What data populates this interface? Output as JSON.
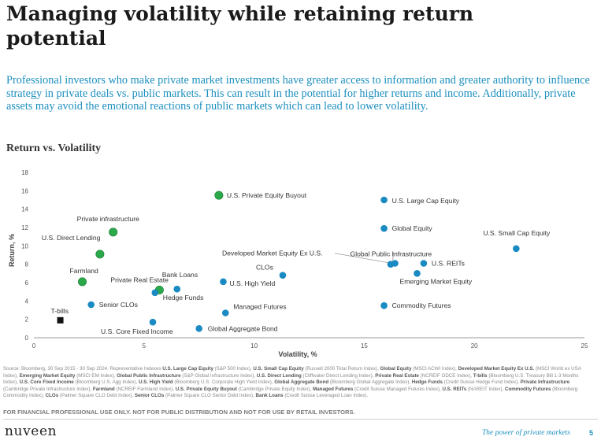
{
  "page": {
    "title": "Managing volatility while retaining return potential",
    "intro": "Professional investors who make private market investments have greater access to information and greater authority to influence strategy in private deals vs. public markets. This can result in the potential for higher returns and income. Additionally, private assets may avoid the emotional reactions of public markets which can lead to lower volatility.",
    "chart_title": "Return vs. Volatility",
    "disclaimer": "FOR FINANCIAL PROFESSIONAL USE ONLY. NOT FOR PUBLIC DISTRIBUTION AND NOT FOR USE BY RETAIL INVESTORS.",
    "logo": "nuveen",
    "tagline": "The power of private markets",
    "page_number": "5"
  },
  "source_note": [
    {
      "t": "Source: Bloomberg, 30 Sep 2015 - 30 Sep 2024. Representative Indexes "
    },
    {
      "t": "U.S. Large Cap Equity",
      "b": true
    },
    {
      "t": " (S&P 500 Index), "
    },
    {
      "t": "U.S. Small Cap Equity",
      "b": true
    },
    {
      "t": " (Russell 2000 Total Return Index), "
    },
    {
      "t": "Global Equity",
      "b": true
    },
    {
      "t": " (MSCI ACWI Index), "
    },
    {
      "t": "Developed Market Equity Ex U.S.",
      "b": true
    },
    {
      "t": " (MSCI World ex USA Index), "
    },
    {
      "t": "Emerging Market Equity",
      "b": true
    },
    {
      "t": " (MSCI EM Index), "
    },
    {
      "t": "Global Public Infrastructure",
      "b": true
    },
    {
      "t": " (S&P Global Infrastructure Index), "
    },
    {
      "t": "U.S. Direct Lending",
      "b": true
    },
    {
      "t": " (Cliffwater Direct Lending Index), "
    },
    {
      "t": "Private Real Estate",
      "b": true
    },
    {
      "t": " (NCREIF ODCE Index), "
    },
    {
      "t": "T-bills",
      "b": true
    },
    {
      "t": " (Bloomberg U.S. Treasury Bill 1-3 Months Index), "
    },
    {
      "t": "U.S. Core Fixed Income",
      "b": true
    },
    {
      "t": " (Bloomberg U.S. Agg Index), "
    },
    {
      "t": "U.S. High Yield",
      "b": true
    },
    {
      "t": " (Bloomberg U.S. Corporate High Yield Index), "
    },
    {
      "t": "Global Aggregate Bond",
      "b": true
    },
    {
      "t": " (Bloomberg Global Aggregate Index), "
    },
    {
      "t": "Hedge Funds",
      "b": true
    },
    {
      "t": " (Credit Suisse Hedge Fund Index), "
    },
    {
      "t": "Private Infrastructure",
      "b": true
    },
    {
      "t": " (Cambridge Private Infrastructure Index), "
    },
    {
      "t": "Farmland",
      "b": true
    },
    {
      "t": " (NCREIF Farmland Index), "
    },
    {
      "t": "U.S. Private Equity Buyout",
      "b": true
    },
    {
      "t": " (Cambridge Private Equity Index), "
    },
    {
      "t": "Managed Futures",
      "b": true
    },
    {
      "t": " (Credit Suisse Managed Futures Index), "
    },
    {
      "t": "U.S. REITs",
      "b": true
    },
    {
      "t": " (NAREIT Index), "
    },
    {
      "t": "Commodity Futures",
      "b": true
    },
    {
      "t": " (Bloomberg Commodity Index), "
    },
    {
      "t": "CLOs",
      "b": true
    },
    {
      "t": " (Palmer Square CLO Debt Index), "
    },
    {
      "t": "Senior CLOs",
      "b": true
    },
    {
      "t": " (Palmer Square CLO Senior Debt Index), "
    },
    {
      "t": "Bank Loans",
      "b": true
    },
    {
      "t": " (Credit Suisse Leveraged Loan Index)."
    }
  ],
  "colors": {
    "public": "#1a8ac2",
    "private": "#2aa84a",
    "tbill": "#111111"
  },
  "chart_data": {
    "type": "scatter",
    "xlabel": "Volatility, %",
    "ylabel": "Return, %",
    "xlim": [
      0,
      25
    ],
    "ylim": [
      0,
      18
    ],
    "xticks": [
      "0",
      "5",
      "10",
      "15",
      "20",
      "25"
    ],
    "yticks": [
      "0",
      "2",
      "4",
      "6",
      "8",
      "10",
      "12",
      "14",
      "16",
      "18"
    ],
    "grid": false,
    "points": [
      {
        "name": "U.S. Private Equity Buyout",
        "x": 8.4,
        "y": 15.5,
        "group": "private"
      },
      {
        "name": "U.S. Large Cap Equity",
        "x": 15.9,
        "y": 15.0,
        "group": "public"
      },
      {
        "name": "Private infrastructure",
        "x": 3.6,
        "y": 11.5,
        "group": "private"
      },
      {
        "name": "Global Equity",
        "x": 15.9,
        "y": 11.9,
        "group": "public"
      },
      {
        "name": "U.S. Small Cap Equity",
        "x": 21.9,
        "y": 9.7,
        "group": "public"
      },
      {
        "name": "U.S. Direct Lending",
        "x": 3.0,
        "y": 9.1,
        "group": "private"
      },
      {
        "name": "Developed Market Equity Ex U.S.",
        "x": 16.2,
        "y": 8.0,
        "group": "public"
      },
      {
        "name": "Global Public Infrastructure",
        "x": 16.4,
        "y": 8.1,
        "group": "public"
      },
      {
        "name": "U.S. REITs",
        "x": 17.7,
        "y": 8.1,
        "group": "public"
      },
      {
        "name": "Emerging Market Equity",
        "x": 17.4,
        "y": 7.0,
        "group": "public"
      },
      {
        "name": "Farmland",
        "x": 2.2,
        "y": 6.1,
        "group": "private"
      },
      {
        "name": "CLOs",
        "x": 11.3,
        "y": 6.8,
        "group": "public"
      },
      {
        "name": "Bank Loans",
        "x": 6.5,
        "y": 5.3,
        "group": "public"
      },
      {
        "name": "Private Real Estate",
        "x": 5.7,
        "y": 5.2,
        "group": "private"
      },
      {
        "name": "Hedge Funds",
        "x": 5.5,
        "y": 4.9,
        "group": "public"
      },
      {
        "name": "U.S. High Yield",
        "x": 8.6,
        "y": 6.1,
        "group": "public"
      },
      {
        "name": "Senior CLOs",
        "x": 2.6,
        "y": 3.6,
        "group": "public"
      },
      {
        "name": "Managed Futures",
        "x": 8.7,
        "y": 2.7,
        "group": "public"
      },
      {
        "name": "Commodity Futures",
        "x": 15.9,
        "y": 3.5,
        "group": "public"
      },
      {
        "name": "T-bills",
        "x": 1.2,
        "y": 1.9,
        "group": "tbill"
      },
      {
        "name": "U.S. Core Fixed Income",
        "x": 5.4,
        "y": 1.7,
        "group": "public"
      },
      {
        "name": "Global Aggregate Bond",
        "x": 7.5,
        "y": 1.0,
        "group": "public"
      }
    ]
  }
}
